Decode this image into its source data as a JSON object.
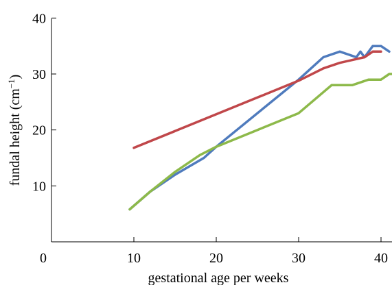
{
  "chart_data": {
    "type": "line",
    "title": "",
    "xlabel": "gestational age per weeks",
    "ylabel_main": "fundal height (cm",
    "ylabel_sup": "−1",
    "ylabel_close": ")",
    "xlim": [
      0,
      41
    ],
    "ylim": [
      0,
      40
    ],
    "xticks": [
      0,
      10,
      20,
      30,
      40
    ],
    "yticks": [
      10,
      20,
      30,
      40
    ],
    "grid": false,
    "legend": "none",
    "series": [
      {
        "color": "#4f7bbd",
        "points": [
          [
            9.5,
            5.8
          ],
          [
            12,
            9
          ],
          [
            15,
            12
          ],
          [
            18.5,
            15
          ],
          [
            20,
            17
          ],
          [
            25,
            23
          ],
          [
            30,
            29
          ],
          [
            33,
            33
          ],
          [
            35,
            34
          ],
          [
            37,
            33
          ],
          [
            37.5,
            34
          ],
          [
            38,
            33
          ],
          [
            39,
            35
          ],
          [
            40,
            35
          ],
          [
            41,
            34
          ]
        ]
      },
      {
        "color": "#c0474a",
        "points": [
          [
            10,
            16.8
          ],
          [
            15,
            19.8
          ],
          [
            20,
            22.8
          ],
          [
            25,
            25.8
          ],
          [
            30,
            28.8
          ],
          [
            33,
            31
          ],
          [
            35,
            32
          ],
          [
            38,
            33
          ],
          [
            39,
            34
          ],
          [
            40,
            34
          ]
        ]
      },
      {
        "color": "#8db94a",
        "points": [
          [
            9.5,
            5.8
          ],
          [
            12,
            9
          ],
          [
            15,
            12.5
          ],
          [
            18,
            15.5
          ],
          [
            20,
            17
          ],
          [
            25,
            20
          ],
          [
            30,
            23
          ],
          [
            34,
            28
          ],
          [
            36.5,
            28
          ],
          [
            38.5,
            29
          ],
          [
            40,
            29
          ],
          [
            41,
            30
          ],
          [
            42,
            30
          ]
        ]
      }
    ]
  }
}
